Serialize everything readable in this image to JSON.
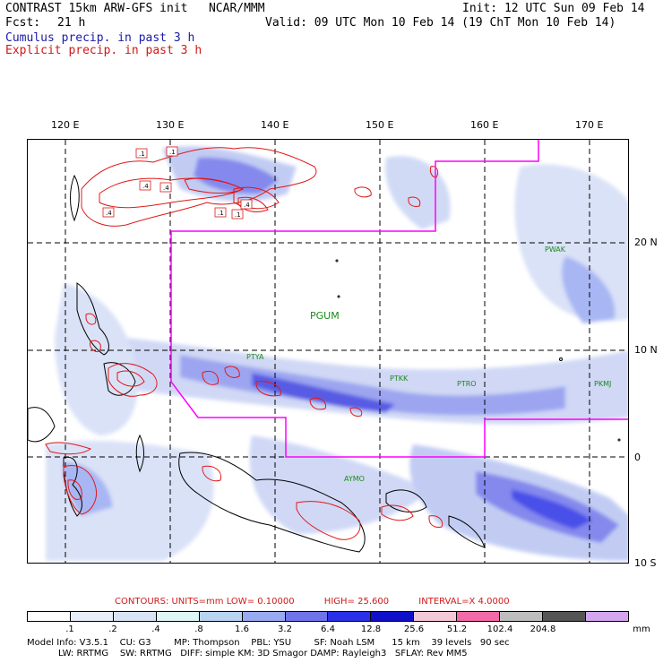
{
  "header": {
    "title": "CONTRAST 15km ARW-GFS init   NCAR/MMM",
    "init": "Init: 12 UTC Sun 09 Feb 14",
    "fcst_label": "Fcst:",
    "fcst_value": "21 h",
    "valid": "Valid: 09 UTC Mon 10 Feb 14 (19 ChT Mon 10 Feb 14)",
    "legend_cumulus": "Cumulus precip. in past 3 h",
    "legend_explicit": "Explicit precip. in past 3 h"
  },
  "axes": {
    "longitudes": [
      "120 E",
      "130 E",
      "140 E",
      "150 E",
      "160 E",
      "170 E"
    ],
    "latitudes": [
      "20 N",
      "10 N",
      "0",
      "10 S"
    ]
  },
  "stations": [
    {
      "id": "PWAK"
    },
    {
      "id": "PGUM"
    },
    {
      "id": "PTYA"
    },
    {
      "id": "PTKK"
    },
    {
      "id": "PTRO"
    },
    {
      "id": "PKMJ"
    },
    {
      "id": "AYMO"
    }
  ],
  "contour_labels": [
    ".1",
    ".1",
    ".4",
    ".4",
    ".4",
    ".1",
    ".4",
    ".1"
  ],
  "contours": {
    "units": "CONTOURS:  UNITS=mm  LOW= 0.10000",
    "high": "HIGH=  25.600",
    "interval": "INTERVAL=X  4.0000"
  },
  "colorbar": {
    "labels": [
      ".1",
      ".2",
      ".4",
      ".8",
      "1.6",
      "3.2",
      "6.4",
      "12.8",
      "25.6",
      "51.2",
      "102.4",
      "204.8"
    ],
    "unit": "mm",
    "colors": [
      "#ffffff",
      "#e8eefa",
      "#d8e4f6",
      "#dff6f6",
      "#b8d4f0",
      "#9aaaf2",
      "#6f74ea",
      "#2a30e6",
      "#1010c8",
      "#f4c8d6",
      "#f26aa8",
      "#bdbdbd",
      "#555555",
      "#d4a6ee"
    ]
  },
  "model_info": {
    "line1": "Model Info: V3.5.1    CU: G3        MP: Thompson    PBL: YSU        SF: Noah LSM      15 km    39 levels   90 sec",
    "line2": "           LW: RRTMG    SW: RRTMG   DIFF: simple KM: 3D Smagor DAMP: Rayleigh3   SFLAY: Rev MM5"
  }
}
